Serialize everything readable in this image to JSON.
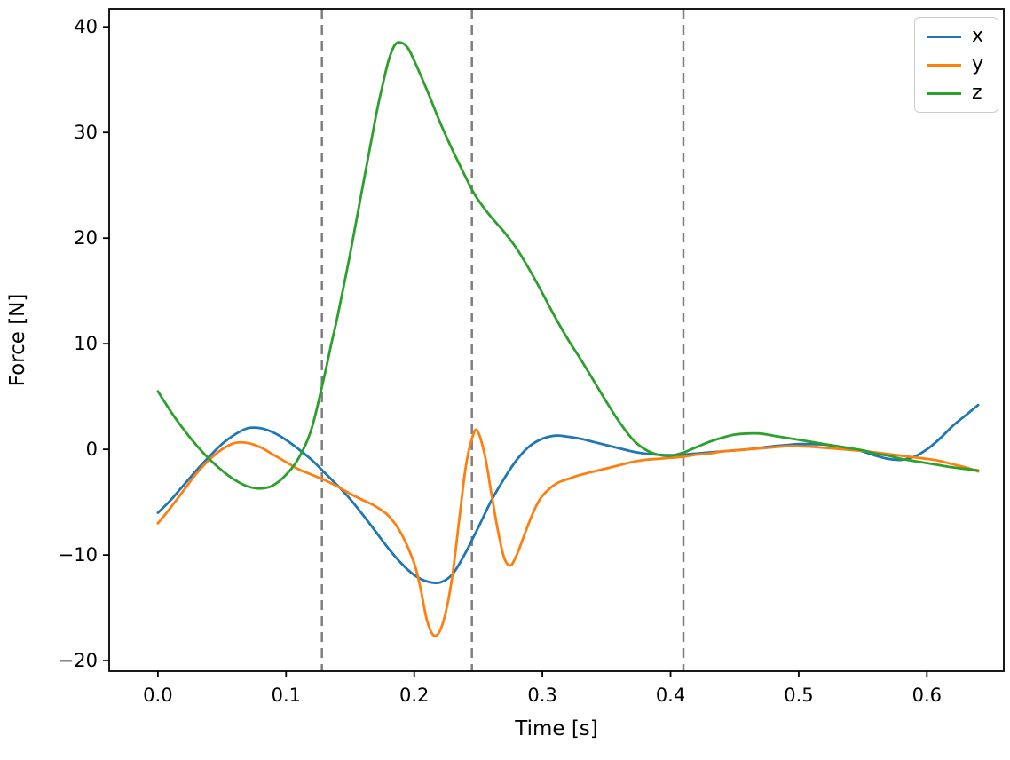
{
  "figure": {
    "background_color": "#ffffff",
    "axes_color": "#000000"
  },
  "chart_data": {
    "type": "line",
    "title": "",
    "xlabel": "Time [s]",
    "ylabel": "Force [N]",
    "xlim": [
      -0.038,
      0.66
    ],
    "ylim": [
      -21,
      41.7
    ],
    "x_ticks": [
      0.0,
      0.1,
      0.2,
      0.3,
      0.4,
      0.5,
      0.6
    ],
    "y_ticks": [
      -20,
      -10,
      0,
      10,
      20,
      30,
      40
    ],
    "grid": false,
    "legend_position": "upper right",
    "vlines": {
      "color": "#7f7f7f",
      "style": "dashed",
      "x_values": [
        0.128,
        0.245,
        0.41
      ]
    },
    "series": [
      {
        "name": "x",
        "color": "#1f77b4",
        "points": [
          [
            0.0,
            -6.0
          ],
          [
            0.01,
            -4.8
          ],
          [
            0.02,
            -3.4
          ],
          [
            0.03,
            -2.0
          ],
          [
            0.04,
            -0.7
          ],
          [
            0.05,
            0.5
          ],
          [
            0.06,
            1.4
          ],
          [
            0.07,
            2.0
          ],
          [
            0.08,
            2.0
          ],
          [
            0.09,
            1.6
          ],
          [
            0.1,
            0.9
          ],
          [
            0.11,
            0.0
          ],
          [
            0.12,
            -1.0
          ],
          [
            0.13,
            -2.2
          ],
          [
            0.14,
            -3.4
          ],
          [
            0.15,
            -4.7
          ],
          [
            0.16,
            -6.2
          ],
          [
            0.17,
            -7.8
          ],
          [
            0.18,
            -9.4
          ],
          [
            0.19,
            -10.8
          ],
          [
            0.2,
            -11.9
          ],
          [
            0.21,
            -12.5
          ],
          [
            0.22,
            -12.6
          ],
          [
            0.23,
            -11.8
          ],
          [
            0.24,
            -9.8
          ],
          [
            0.245,
            -8.6
          ],
          [
            0.25,
            -7.4
          ],
          [
            0.26,
            -4.9
          ],
          [
            0.27,
            -2.8
          ],
          [
            0.28,
            -1.0
          ],
          [
            0.29,
            0.3
          ],
          [
            0.3,
            1.0
          ],
          [
            0.31,
            1.3
          ],
          [
            0.32,
            1.2
          ],
          [
            0.33,
            1.0
          ],
          [
            0.34,
            0.7
          ],
          [
            0.35,
            0.4
          ],
          [
            0.36,
            0.1
          ],
          [
            0.37,
            -0.2
          ],
          [
            0.38,
            -0.4
          ],
          [
            0.39,
            -0.5
          ],
          [
            0.4,
            -0.55
          ],
          [
            0.41,
            -0.5
          ],
          [
            0.42,
            -0.4
          ],
          [
            0.43,
            -0.3
          ],
          [
            0.44,
            -0.2
          ],
          [
            0.45,
            -0.1
          ],
          [
            0.46,
            0.0
          ],
          [
            0.47,
            0.15
          ],
          [
            0.48,
            0.3
          ],
          [
            0.49,
            0.4
          ],
          [
            0.5,
            0.5
          ],
          [
            0.51,
            0.5
          ],
          [
            0.52,
            0.45
          ],
          [
            0.53,
            0.3
          ],
          [
            0.54,
            0.1
          ],
          [
            0.55,
            -0.2
          ],
          [
            0.56,
            -0.6
          ],
          [
            0.57,
            -0.9
          ],
          [
            0.58,
            -1.0
          ],
          [
            0.59,
            -0.7
          ],
          [
            0.6,
            0.0
          ],
          [
            0.61,
            1.0
          ],
          [
            0.62,
            2.2
          ],
          [
            0.63,
            3.2
          ],
          [
            0.64,
            4.2
          ]
        ]
      },
      {
        "name": "y",
        "color": "#ff7f0e",
        "points": [
          [
            0.0,
            -7.0
          ],
          [
            0.01,
            -5.5
          ],
          [
            0.02,
            -3.9
          ],
          [
            0.03,
            -2.3
          ],
          [
            0.04,
            -1.0
          ],
          [
            0.05,
            0.0
          ],
          [
            0.06,
            0.6
          ],
          [
            0.07,
            0.6
          ],
          [
            0.08,
            0.2
          ],
          [
            0.09,
            -0.5
          ],
          [
            0.1,
            -1.2
          ],
          [
            0.11,
            -1.9
          ],
          [
            0.12,
            -2.4
          ],
          [
            0.13,
            -2.9
          ],
          [
            0.14,
            -3.5
          ],
          [
            0.15,
            -4.2
          ],
          [
            0.16,
            -4.8
          ],
          [
            0.17,
            -5.4
          ],
          [
            0.18,
            -6.3
          ],
          [
            0.19,
            -8.0
          ],
          [
            0.2,
            -10.8
          ],
          [
            0.205,
            -13.2
          ],
          [
            0.21,
            -16.2
          ],
          [
            0.215,
            -17.6
          ],
          [
            0.22,
            -17.2
          ],
          [
            0.225,
            -15.2
          ],
          [
            0.23,
            -11.8
          ],
          [
            0.235,
            -6.8
          ],
          [
            0.24,
            -1.8
          ],
          [
            0.245,
            1.0
          ],
          [
            0.249,
            1.8
          ],
          [
            0.255,
            -0.5
          ],
          [
            0.26,
            -4.0
          ],
          [
            0.265,
            -7.5
          ],
          [
            0.27,
            -10.2
          ],
          [
            0.275,
            -11.0
          ],
          [
            0.28,
            -10.0
          ],
          [
            0.285,
            -8.4
          ],
          [
            0.29,
            -6.8
          ],
          [
            0.295,
            -5.4
          ],
          [
            0.3,
            -4.4
          ],
          [
            0.31,
            -3.3
          ],
          [
            0.32,
            -2.8
          ],
          [
            0.33,
            -2.4
          ],
          [
            0.34,
            -2.1
          ],
          [
            0.35,
            -1.8
          ],
          [
            0.36,
            -1.5
          ],
          [
            0.37,
            -1.2
          ],
          [
            0.38,
            -1.0
          ],
          [
            0.39,
            -0.9
          ],
          [
            0.4,
            -0.8
          ],
          [
            0.41,
            -0.7
          ],
          [
            0.42,
            -0.5
          ],
          [
            0.43,
            -0.4
          ],
          [
            0.44,
            -0.2
          ],
          [
            0.45,
            -0.1
          ],
          [
            0.46,
            0.0
          ],
          [
            0.47,
            0.1
          ],
          [
            0.48,
            0.2
          ],
          [
            0.49,
            0.3
          ],
          [
            0.5,
            0.3
          ],
          [
            0.51,
            0.25
          ],
          [
            0.52,
            0.15
          ],
          [
            0.53,
            0.05
          ],
          [
            0.54,
            -0.05
          ],
          [
            0.55,
            -0.15
          ],
          [
            0.56,
            -0.3
          ],
          [
            0.57,
            -0.45
          ],
          [
            0.58,
            -0.6
          ],
          [
            0.59,
            -0.75
          ],
          [
            0.6,
            -0.9
          ],
          [
            0.61,
            -1.1
          ],
          [
            0.62,
            -1.4
          ],
          [
            0.63,
            -1.7
          ],
          [
            0.64,
            -2.1
          ]
        ]
      },
      {
        "name": "z",
        "color": "#2ca02c",
        "points": [
          [
            0.0,
            5.5
          ],
          [
            0.01,
            3.6
          ],
          [
            0.02,
            1.9
          ],
          [
            0.03,
            0.4
          ],
          [
            0.04,
            -0.9
          ],
          [
            0.05,
            -2.0
          ],
          [
            0.06,
            -2.9
          ],
          [
            0.07,
            -3.5
          ],
          [
            0.08,
            -3.7
          ],
          [
            0.09,
            -3.4
          ],
          [
            0.1,
            -2.4
          ],
          [
            0.11,
            -0.8
          ],
          [
            0.12,
            2.0
          ],
          [
            0.13,
            7.0
          ],
          [
            0.135,
            9.8
          ],
          [
            0.14,
            12.5
          ],
          [
            0.15,
            18.5
          ],
          [
            0.16,
            25.0
          ],
          [
            0.17,
            31.5
          ],
          [
            0.175,
            34.3
          ],
          [
            0.18,
            36.8
          ],
          [
            0.185,
            38.3
          ],
          [
            0.19,
            38.5
          ],
          [
            0.195,
            38.0
          ],
          [
            0.2,
            36.8
          ],
          [
            0.21,
            34.0
          ],
          [
            0.22,
            31.0
          ],
          [
            0.23,
            28.3
          ],
          [
            0.24,
            25.8
          ],
          [
            0.245,
            24.6
          ],
          [
            0.25,
            23.6
          ],
          [
            0.26,
            22.0
          ],
          [
            0.27,
            20.6
          ],
          [
            0.28,
            19.0
          ],
          [
            0.29,
            17.0
          ],
          [
            0.3,
            14.8
          ],
          [
            0.31,
            12.5
          ],
          [
            0.32,
            10.4
          ],
          [
            0.33,
            8.5
          ],
          [
            0.34,
            6.5
          ],
          [
            0.35,
            4.5
          ],
          [
            0.36,
            2.6
          ],
          [
            0.37,
            1.0
          ],
          [
            0.38,
            0.0
          ],
          [
            0.39,
            -0.5
          ],
          [
            0.4,
            -0.6
          ],
          [
            0.41,
            -0.3
          ],
          [
            0.42,
            0.2
          ],
          [
            0.43,
            0.7
          ],
          [
            0.44,
            1.1
          ],
          [
            0.45,
            1.4
          ],
          [
            0.46,
            1.5
          ],
          [
            0.47,
            1.5
          ],
          [
            0.48,
            1.3
          ],
          [
            0.49,
            1.1
          ],
          [
            0.5,
            0.9
          ],
          [
            0.51,
            0.7
          ],
          [
            0.52,
            0.5
          ],
          [
            0.53,
            0.3
          ],
          [
            0.54,
            0.1
          ],
          [
            0.55,
            -0.1
          ],
          [
            0.56,
            -0.4
          ],
          [
            0.57,
            -0.6
          ],
          [
            0.58,
            -0.9
          ],
          [
            0.59,
            -1.1
          ],
          [
            0.6,
            -1.3
          ],
          [
            0.61,
            -1.5
          ],
          [
            0.62,
            -1.7
          ],
          [
            0.63,
            -1.85
          ],
          [
            0.64,
            -2.0
          ]
        ]
      }
    ]
  },
  "legend": {
    "entries": [
      {
        "label": "x",
        "color": "#1f77b4"
      },
      {
        "label": "y",
        "color": "#ff7f0e"
      },
      {
        "label": "z",
        "color": "#2ca02c"
      }
    ]
  }
}
